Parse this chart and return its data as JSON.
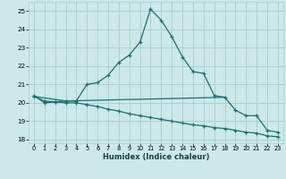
{
  "xlabel": "Humidex (Indice chaleur)",
  "bg_color": "#cce8e8",
  "grid_color": "#aacccc",
  "line_color": "#1a7070",
  "xlim": [
    -0.5,
    23.5
  ],
  "ylim": [
    17.8,
    25.5
  ],
  "yticks": [
    18,
    19,
    20,
    21,
    22,
    23,
    24,
    25
  ],
  "xticks": [
    0,
    1,
    2,
    3,
    4,
    5,
    6,
    7,
    8,
    9,
    10,
    11,
    12,
    13,
    14,
    15,
    16,
    17,
    18,
    19,
    20,
    21,
    22,
    23
  ],
  "line1_x": [
    0,
    1,
    2,
    3,
    4,
    5,
    6,
    7,
    8,
    9,
    10,
    11,
    12,
    13,
    14,
    15,
    16,
    17,
    18,
    19,
    20,
    21,
    22,
    23
  ],
  "line1_y": [
    20.4,
    20.0,
    20.05,
    20.1,
    20.1,
    21.0,
    21.1,
    21.5,
    22.2,
    22.6,
    23.3,
    25.1,
    24.5,
    23.6,
    22.5,
    21.7,
    21.6,
    20.4,
    20.3,
    19.6,
    19.3,
    19.3,
    18.5,
    18.4
  ],
  "line2_x": [
    0,
    3,
    18
  ],
  "line2_y": [
    20.35,
    20.1,
    20.3
  ],
  "line3_x": [
    0,
    1,
    2,
    3,
    4,
    5,
    6,
    7,
    8,
    9,
    10,
    11,
    12,
    13,
    14,
    15,
    16,
    17,
    18,
    19,
    20,
    21,
    22,
    23
  ],
  "line3_y": [
    20.35,
    20.1,
    20.05,
    20.0,
    20.0,
    19.9,
    19.8,
    19.65,
    19.55,
    19.4,
    19.3,
    19.2,
    19.1,
    19.0,
    18.9,
    18.8,
    18.75,
    18.65,
    18.6,
    18.5,
    18.4,
    18.35,
    18.2,
    18.15
  ]
}
